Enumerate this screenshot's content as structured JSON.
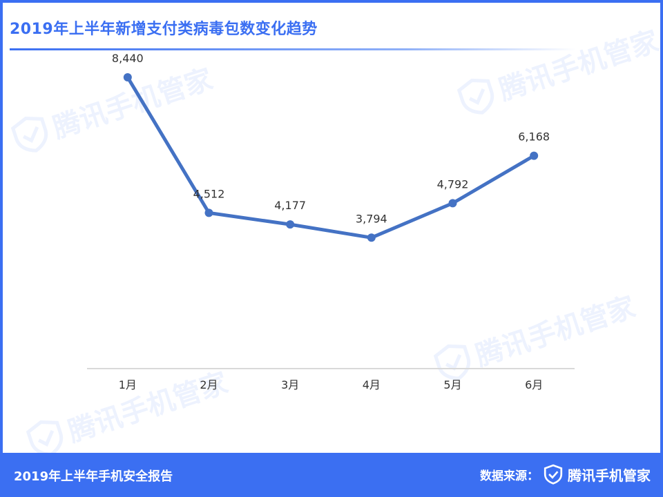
{
  "title": "2019年上半年新增支付类病毒包数变化趋势",
  "watermark": {
    "text": "腾讯手机管家",
    "icon": "shield-check-icon",
    "color": "#3b6ff2"
  },
  "footer": {
    "report": "2019年上半年手机安全报告",
    "source_label": "数据来源：",
    "brand": "腾讯手机管家",
    "brand_icon": "shield-check-icon"
  },
  "colors": {
    "accent": "#3b6ff2",
    "line": "#4472c4",
    "axis": "#d9d9d9"
  },
  "chart_data": {
    "type": "line",
    "categories": [
      "1月",
      "2月",
      "3月",
      "4月",
      "5月",
      "6月"
    ],
    "values": [
      8440,
      4512,
      4177,
      3794,
      4792,
      6168
    ],
    "value_labels": [
      "8,440",
      "4,512",
      "4,177",
      "3,794",
      "4,792",
      "6,168"
    ],
    "title": "2019年上半年新增支付类病毒包数变化趋势",
    "xlabel": "",
    "ylabel": "",
    "ylim": [
      0,
      10000
    ],
    "grid": false,
    "legend": "none",
    "data_labels": true
  }
}
